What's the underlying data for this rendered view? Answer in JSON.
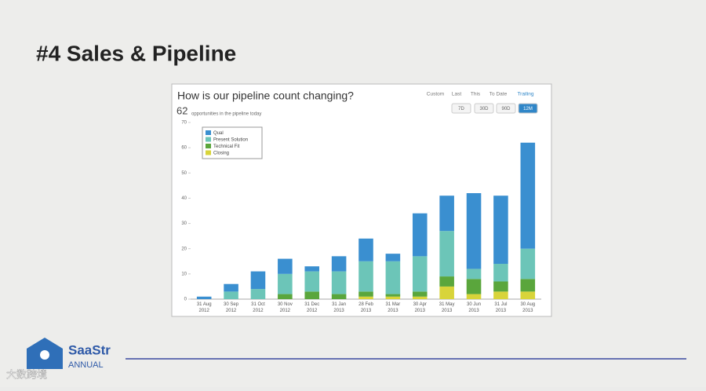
{
  "slide": {
    "title": "#4 Sales & Pipeline"
  },
  "chart_data": {
    "type": "stacked-bar",
    "title": "How is our pipeline count changing?",
    "headline_count": 62,
    "headline_text": "opportunities in the pipeline today",
    "categories": [
      "31 Aug 2012",
      "30 Sep 2012",
      "31 Oct 2012",
      "30 Nov 2012",
      "31 Dec 2012",
      "31 Jan 2013",
      "28 Feb 2013",
      "31 Mar 2013",
      "30 Apr 2013",
      "31 May 2013",
      "30 Jun 2013",
      "31 Jul 2013",
      "30 Aug 2013"
    ],
    "series": [
      {
        "name": "Qual",
        "color": "#3a8fd0",
        "values": [
          1,
          3,
          7,
          6,
          2,
          6,
          9,
          3,
          17,
          14,
          30,
          27,
          42
        ]
      },
      {
        "name": "Present Solution",
        "color": "#6cc5b8",
        "values": [
          0,
          3,
          4,
          8,
          8,
          9,
          12,
          13,
          14,
          18,
          4,
          7,
          12
        ]
      },
      {
        "name": "Technical Fit",
        "color": "#5aa63c",
        "values": [
          0,
          0,
          0,
          2,
          3,
          2,
          2,
          1,
          2,
          4,
          6,
          4,
          5
        ]
      },
      {
        "name": "Closing",
        "color": "#d8d43a",
        "values": [
          0,
          0,
          0,
          0,
          0,
          0,
          1,
          1,
          1,
          5,
          2,
          3,
          3
        ]
      }
    ],
    "ylim": [
      0,
      70
    ],
    "yticks": [
      0,
      10,
      20,
      30,
      40,
      50,
      60,
      70
    ],
    "grid": false,
    "legend": "upper left"
  },
  "controls": {
    "modes": [
      "Custom",
      "Last",
      "This",
      "To Date",
      "Trailing"
    ],
    "active_mode": 4,
    "ranges": [
      "7D",
      "30D",
      "90D",
      "12M"
    ],
    "active_range": 3
  },
  "footer": {
    "brand": "SaaStr",
    "tag": "ANNUAL",
    "watermark": "大数跨境"
  }
}
